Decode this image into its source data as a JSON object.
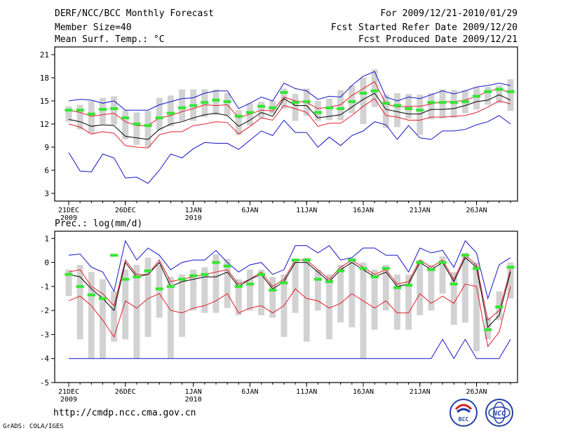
{
  "header": {
    "title": "DERF/NCC/BCC Monthly Forecast",
    "member": "Member Size=40",
    "variable": "Mean Surf. Temp.: °C",
    "period": "For 2009/12/21-2010/01/29",
    "started": "Fcst Started Refer Date 2009/12/20",
    "produced": "Fcst Produced Date 2009/12/21"
  },
  "footer": {
    "url": "http://cmdp.ncc.cma.gov.cn",
    "credit": "GrADS: COLA/IGES"
  },
  "logos": {
    "left": "BCC",
    "right": "NCC"
  },
  "colors": {
    "ensemble_mean": "#000000",
    "spread": "#e0202a",
    "extremes": "#1414c8",
    "median": "#33e633",
    "box": "#d2d2d2"
  },
  "chart_data": [
    {
      "type": "line",
      "title": "Mean Surf. Temp.: °C",
      "xlabel": "",
      "ylabel": "",
      "ylim": [
        2,
        22
      ],
      "yticks": [
        3,
        6,
        9,
        12,
        15,
        18,
        21
      ],
      "x_tick_labels": [
        {
          "day": 1,
          "label": "21DEC",
          "sub": "2009"
        },
        {
          "day": 6,
          "label": "26DEC",
          "sub": ""
        },
        {
          "day": 12,
          "label": "1JAN",
          "sub": "2010"
        },
        {
          "day": 17,
          "label": "6JAN",
          "sub": ""
        },
        {
          "day": 22,
          "label": "11JAN",
          "sub": ""
        },
        {
          "day": 27,
          "label": "16JAN",
          "sub": ""
        },
        {
          "day": 32,
          "label": "21JAN",
          "sub": ""
        },
        {
          "day": 37,
          "label": "26JAN",
          "sub": ""
        }
      ],
      "days": [
        1,
        2,
        3,
        4,
        5,
        6,
        7,
        8,
        9,
        10,
        11,
        12,
        13,
        14,
        15,
        16,
        17,
        18,
        19,
        20,
        21,
        22,
        23,
        24,
        25,
        26,
        27,
        28,
        29,
        30,
        31,
        32,
        33,
        34,
        35,
        36,
        37,
        38,
        39,
        40
      ],
      "series": [
        {
          "name": "max",
          "values": [
            15.0,
            15.2,
            15.1,
            14.7,
            15.0,
            13.8,
            13.8,
            13.8,
            14.5,
            14.9,
            15.3,
            15.4,
            16.0,
            16.3,
            16.3,
            14.0,
            14.7,
            15.5,
            15.0,
            17.3,
            16.6,
            16.3,
            15.2,
            15.6,
            15.5,
            17.0,
            18.2,
            18.8,
            15.5,
            15.0,
            15.5,
            15.3,
            15.8,
            16.3,
            15.9,
            16.3,
            16.8,
            17.0,
            17.3,
            17.0
          ]
        },
        {
          "name": "upper",
          "values": [
            13.8,
            13.5,
            13.0,
            13.2,
            13.4,
            12.3,
            11.8,
            11.8,
            12.8,
            13.1,
            13.6,
            14.0,
            14.5,
            14.4,
            14.5,
            12.8,
            13.3,
            13.8,
            13.7,
            15.5,
            15.0,
            14.8,
            14.0,
            14.2,
            14.5,
            15.7,
            16.6,
            17.5,
            14.6,
            14.2,
            14.3,
            14.3,
            14.6,
            14.9,
            14.9,
            15.1,
            15.6,
            16.2,
            16.6,
            16.0
          ]
        },
        {
          "name": "mean",
          "values": [
            12.6,
            12.3,
            11.7,
            11.9,
            11.8,
            10.4,
            10.2,
            10.0,
            11.3,
            12.0,
            12.3,
            12.8,
            13.2,
            13.4,
            13.1,
            11.7,
            12.5,
            13.5,
            13.0,
            15.3,
            14.4,
            14.4,
            12.8,
            13.0,
            13.2,
            14.2,
            15.2,
            16.0,
            13.9,
            13.6,
            13.3,
            13.3,
            13.9,
            13.9,
            14.0,
            14.4,
            14.9,
            15.1,
            15.8,
            15.1
          ]
        },
        {
          "name": "lower",
          "values": [
            12.0,
            11.6,
            10.7,
            11.0,
            10.8,
            9.2,
            9.0,
            8.9,
            10.6,
            11.0,
            11.0,
            11.8,
            12.0,
            12.3,
            12.2,
            10.7,
            11.7,
            12.8,
            12.5,
            14.4,
            14.0,
            13.5,
            11.7,
            12.1,
            12.1,
            13.1,
            14.3,
            15.3,
            13.1,
            12.9,
            12.5,
            12.5,
            12.9,
            12.9,
            13.0,
            13.1,
            13.5,
            14.2,
            15.0,
            14.6
          ]
        },
        {
          "name": "min",
          "values": [
            8.3,
            5.9,
            5.8,
            8.1,
            7.6,
            5.0,
            5.1,
            4.3,
            6.0,
            8.1,
            7.6,
            8.8,
            9.6,
            9.5,
            9.5,
            8.7,
            9.9,
            11.1,
            10.5,
            12.5,
            10.9,
            10.9,
            9.0,
            10.3,
            9.2,
            10.5,
            11.1,
            12.3,
            11.9,
            10.0,
            11.8,
            10.2,
            10.0,
            11.1,
            11.1,
            11.3,
            11.9,
            12.3,
            13.1,
            12.0
          ]
        },
        {
          "name": "median",
          "values": [
            13.8,
            13.8,
            13.3,
            13.9,
            14.0,
            12.8,
            12.0,
            11.8,
            12.8,
            13.4,
            14.1,
            14.4,
            14.8,
            15.1,
            14.9,
            13.0,
            13.5,
            14.3,
            14.1,
            16.1,
            14.8,
            14.9,
            13.5,
            14.1,
            14.0,
            14.9,
            16.0,
            16.3,
            14.7,
            14.4,
            14.0,
            13.8,
            14.8,
            14.8,
            14.8,
            14.9,
            15.6,
            16.2,
            16.5,
            16.2
          ]
        },
        {
          "name": "box_low",
          "values": [
            12.3,
            11.3,
            10.8,
            12.0,
            11.9,
            10.0,
            9.3,
            9.0,
            11.2,
            11.7,
            12.4,
            12.4,
            12.9,
            13.2,
            13.1,
            10.6,
            11.8,
            12.8,
            13.3,
            14.0,
            12.4,
            13.1,
            12.4,
            12.5,
            12.5,
            13.4,
            12.0,
            14.2,
            11.5,
            11.6,
            12.7,
            10.6,
            12.6,
            12.7,
            12.8,
            13.4,
            13.9,
            14.5,
            14.7,
            13.7
          ]
        },
        {
          "name": "box_high",
          "values": [
            14.3,
            14.5,
            15.0,
            15.4,
            15.6,
            13.8,
            13.5,
            13.7,
            15.4,
            15.7,
            16.5,
            16.5,
            16.5,
            16.5,
            16.0,
            13.8,
            14.7,
            14.9,
            15.0,
            16.6,
            15.9,
            16.6,
            15.0,
            15.3,
            16.4,
            17.0,
            18.0,
            19.1,
            15.8,
            16.0,
            15.9,
            15.8,
            16.0,
            16.5,
            16.4,
            16.4,
            16.8,
            16.8,
            17.0,
            17.8
          ]
        }
      ]
    },
    {
      "type": "line",
      "title": "Prec.: log(mm/d)",
      "xlabel": "",
      "ylabel": "",
      "ylim": [
        -5,
        1.3
      ],
      "yticks": [
        -5,
        -4,
        -3,
        -2,
        -1,
        0,
        1
      ],
      "x_tick_labels": [
        {
          "day": 1,
          "label": "21DEC",
          "sub": "2009"
        },
        {
          "day": 6,
          "label": "26DEC",
          "sub": ""
        },
        {
          "day": 12,
          "label": "1JAN",
          "sub": "2010"
        },
        {
          "day": 17,
          "label": "6JAN",
          "sub": ""
        },
        {
          "day": 22,
          "label": "11JAN",
          "sub": ""
        },
        {
          "day": 27,
          "label": "16JAN",
          "sub": ""
        },
        {
          "day": 32,
          "label": "21JAN",
          "sub": ""
        },
        {
          "day": 37,
          "label": "26JAN",
          "sub": ""
        }
      ],
      "days": [
        1,
        2,
        3,
        4,
        5,
        6,
        7,
        8,
        9,
        10,
        11,
        12,
        13,
        14,
        15,
        16,
        17,
        18,
        19,
        20,
        21,
        22,
        23,
        24,
        25,
        26,
        27,
        28,
        29,
        30,
        31,
        32,
        33,
        34,
        35,
        36,
        37,
        38,
        39,
        40
      ],
      "series": [
        {
          "name": "max",
          "values": [
            0.3,
            0.35,
            -0.2,
            -0.4,
            -1.2,
            0.9,
            0.1,
            0.6,
            0.3,
            -0.3,
            0.0,
            0.1,
            0.1,
            0.5,
            0.0,
            -0.4,
            -0.1,
            0.0,
            -0.5,
            -0.3,
            0.7,
            0.7,
            0.4,
            0.7,
            0.1,
            0.2,
            0.6,
            0.6,
            0.3,
            0.3,
            -0.4,
            0.6,
            0.4,
            0.5,
            -0.2,
            0.9,
            0.4,
            -1.5,
            -0.1,
            0.2
          ]
        },
        {
          "name": "mean",
          "values": [
            -0.5,
            -0.6,
            -1.1,
            -1.5,
            -2.0,
            0.0,
            -0.6,
            -0.5,
            0.0,
            -1.0,
            -0.8,
            -0.7,
            -0.6,
            -0.6,
            -0.4,
            -1.0,
            -0.7,
            -0.5,
            -1.1,
            -0.8,
            0.0,
            0.0,
            -0.4,
            -0.8,
            -0.3,
            0.0,
            -0.3,
            -0.6,
            -0.4,
            -1.0,
            -0.9,
            0.0,
            -0.3,
            0.0,
            -0.8,
            0.2,
            -0.2,
            -2.7,
            -2.2,
            -0.4
          ]
        },
        {
          "name": "upper",
          "values": [
            -0.4,
            -0.3,
            -1.0,
            -1.3,
            -1.8,
            0.1,
            -0.5,
            -0.5,
            0.1,
            -0.8,
            -0.7,
            -0.6,
            -0.5,
            -0.4,
            -0.3,
            -0.9,
            -0.7,
            -0.4,
            -1.0,
            -0.7,
            0.1,
            0.1,
            -0.3,
            -0.7,
            -0.2,
            0.1,
            -0.2,
            -0.5,
            -0.3,
            -0.9,
            -0.8,
            0.1,
            -0.2,
            0.1,
            -0.7,
            0.3,
            -0.1,
            -2.4,
            -2.0,
            -0.3
          ]
        },
        {
          "name": "lower",
          "values": [
            -1.6,
            -1.4,
            -1.8,
            -2.4,
            -3.1,
            -1.6,
            -1.9,
            -1.5,
            -1.3,
            -2.0,
            -2.1,
            -1.9,
            -1.8,
            -1.6,
            -1.3,
            -2.1,
            -1.9,
            -1.8,
            -2.1,
            -1.8,
            -1.1,
            -1.5,
            -1.6,
            -1.9,
            -1.7,
            -1.3,
            -1.6,
            -1.9,
            -1.6,
            -2.1,
            -2.1,
            -1.3,
            -1.7,
            -1.4,
            -1.7,
            -0.9,
            -1.0,
            -3.5,
            -2.9,
            -1.0
          ]
        },
        {
          "name": "min",
          "values": [
            -4.0,
            -4.0,
            -4.0,
            -4.0,
            -4.0,
            -4.0,
            -4.0,
            -4.0,
            -4.0,
            -4.0,
            -4.0,
            -4.0,
            -4.0,
            -4.0,
            -4.0,
            -4.0,
            -4.0,
            -4.0,
            -4.0,
            -4.0,
            -4.0,
            -4.0,
            -4.0,
            -4.0,
            -4.0,
            -4.0,
            -4.0,
            -4.0,
            -4.0,
            -4.0,
            -4.0,
            -4.0,
            -4.0,
            -3.2,
            -4.0,
            -3.2,
            -4.0,
            -4.0,
            -4.0,
            -3.2
          ]
        },
        {
          "name": "median",
          "values": [
            -0.5,
            -1.0,
            -1.35,
            -1.5,
            0.3,
            -0.7,
            -0.6,
            -0.35,
            -1.1,
            -1.0,
            -0.7,
            -0.55,
            -0.5,
            0.0,
            -0.15,
            -1.0,
            -0.9,
            -0.5,
            -1.15,
            -0.85,
            0.1,
            0.1,
            -0.7,
            -0.8,
            -0.35,
            0.1,
            -0.25,
            -0.6,
            -0.25,
            -1.05,
            -0.95,
            0.0,
            -0.3,
            0.0,
            -0.9,
            0.3,
            -0.25,
            -2.8,
            -1.85,
            -0.2
          ]
        },
        {
          "name": "box_low",
          "values": [
            -1.4,
            -3.2,
            -4.0,
            -4.0,
            -3.3,
            -3.2,
            -4.0,
            -3.1,
            -2.3,
            -4.0,
            -3.1,
            -2.0,
            -2.1,
            -2.1,
            -1.9,
            -2.2,
            -2.0,
            -2.2,
            -2.3,
            -3.1,
            -2.1,
            -3.3,
            -2.0,
            -3.2,
            -2.5,
            -2.7,
            -4.0,
            -2.8,
            -2.0,
            -2.8,
            -2.8,
            -2.2,
            -2.0,
            -1.3,
            -2.6,
            -2.5,
            -3.7,
            -3.2,
            -2.4,
            -1.5
          ]
        },
        {
          "name": "box_high",
          "values": [
            -0.3,
            -0.1,
            -0.4,
            -0.7,
            -1.2,
            -0.3,
            -0.1,
            0.2,
            -0.1,
            -0.6,
            -0.5,
            -0.3,
            -0.2,
            0.35,
            0.15,
            -0.7,
            -0.3,
            -0.3,
            -0.6,
            -0.5,
            0.15,
            0.2,
            -0.3,
            -0.5,
            -0.1,
            0.2,
            0.0,
            -0.3,
            -0.1,
            -0.5,
            -0.5,
            0.1,
            -0.1,
            0.25,
            -0.4,
            0.4,
            0.0,
            -2.3,
            -1.2,
            0.0
          ]
        }
      ]
    }
  ]
}
